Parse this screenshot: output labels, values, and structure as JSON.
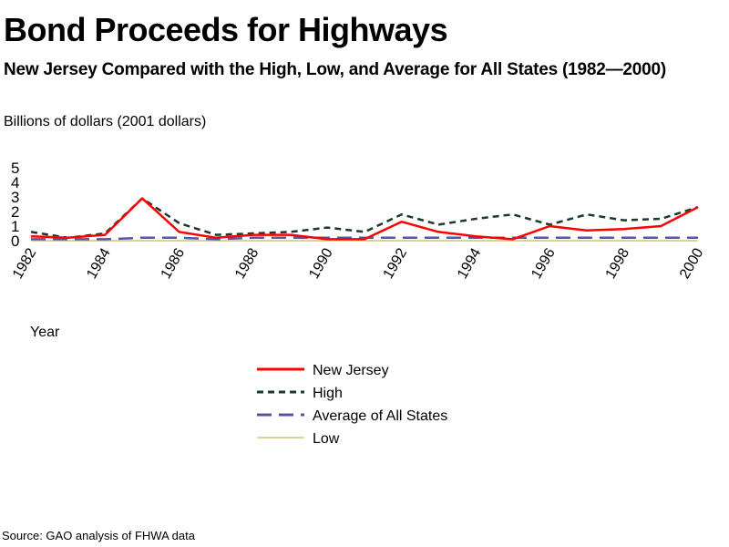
{
  "title": "Bond Proceeds for Highways",
  "subtitle": "New Jersey Compared with the High, Low, and Average for All States (1982—2000)",
  "source": "Source: GAO analysis of FHWA data",
  "chart_data": {
    "type": "line",
    "title": "Bond Proceeds for Highways",
    "subtitle": "New Jersey Compared with the High, Low, and Average for All States (1982—2000)",
    "ylabel": "Billions of dollars (2001 dollars)",
    "xlabel": "Year",
    "ylim": [
      0,
      5
    ],
    "yticks": [
      "0",
      "1",
      "2",
      "3",
      "4",
      "5"
    ],
    "xlim": [
      1982,
      2000
    ],
    "xticks": [
      "1982",
      "1984",
      "1986",
      "1988",
      "1990",
      "1992",
      "1994",
      "1996",
      "1998",
      "2000"
    ],
    "grid": false,
    "legend_position": "bottom",
    "x": [
      1982,
      1983,
      1984,
      1985,
      1986,
      1987,
      1988,
      1989,
      1990,
      1991,
      1992,
      1993,
      1994,
      1995,
      1996,
      1997,
      1998,
      1999,
      2000
    ],
    "series": [
      {
        "name": "New Jersey",
        "color": "#ff0000",
        "style": "solid",
        "values": [
          0.3,
          0.2,
          0.4,
          2.9,
          0.6,
          0.2,
          0.4,
          0.4,
          0.1,
          0.1,
          1.3,
          0.6,
          0.3,
          0.1,
          1.0,
          0.7,
          0.8,
          1.0,
          2.3
        ]
      },
      {
        "name": "High",
        "color": "#1a3a2a",
        "style": "dotted",
        "values": [
          0.6,
          0.2,
          0.5,
          2.9,
          1.2,
          0.4,
          0.5,
          0.6,
          0.9,
          0.6,
          1.8,
          1.1,
          1.5,
          1.8,
          1.1,
          1.8,
          1.4,
          1.5,
          2.3
        ]
      },
      {
        "name": "Average of All States",
        "color": "#5555aa",
        "style": "dashed",
        "values": [
          0.1,
          0.1,
          0.1,
          0.2,
          0.2,
          0.1,
          0.2,
          0.2,
          0.2,
          0.2,
          0.2,
          0.2,
          0.2,
          0.2,
          0.2,
          0.2,
          0.2,
          0.2,
          0.2
        ]
      },
      {
        "name": "Low",
        "color": "#c8c87a",
        "style": "solid",
        "values": [
          0,
          0,
          0,
          0,
          0,
          0,
          0,
          0,
          0,
          0,
          0,
          0,
          0,
          0,
          0,
          0,
          0,
          0,
          0
        ]
      }
    ]
  }
}
